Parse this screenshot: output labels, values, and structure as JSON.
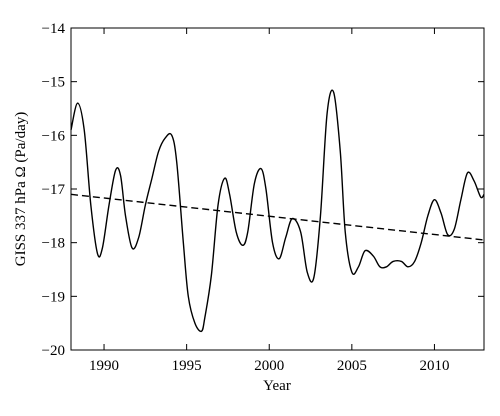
{
  "chart_data": {
    "type": "line",
    "xlabel": "Year",
    "ylabel": "GISS 337 hPa Ω (Pa/day)",
    "xlim": [
      1988.0,
      2013.0
    ],
    "ylim": [
      -20,
      -14
    ],
    "x_ticks": [
      1990,
      1995,
      2000,
      2005,
      2010
    ],
    "y_ticks": [
      -20,
      -19,
      -18,
      -17,
      -16,
      -15,
      -14
    ],
    "grid": false,
    "series": [
      {
        "style": "solid",
        "color": "#000000",
        "x": [
          1988.0,
          1988.4,
          1988.8,
          1989.2,
          1989.6,
          1989.9,
          1990.3,
          1990.7,
          1991.0,
          1991.3,
          1991.7,
          1992.1,
          1992.5,
          1992.9,
          1993.3,
          1993.7,
          1994.1,
          1994.4,
          1994.8,
          1995.1,
          1995.5,
          1995.9,
          1996.1,
          1996.5,
          1996.9,
          1997.3,
          1997.6,
          1998.0,
          1998.4,
          1998.7,
          1999.1,
          1999.5,
          1999.8,
          2000.2,
          2000.6,
          2001.0,
          2001.4,
          2001.9,
          2002.3,
          2002.7,
          2003.1,
          2003.5,
          2003.9,
          2004.3,
          2004.6,
          2005.0,
          2005.4,
          2005.8,
          2006.3,
          2006.7,
          2007.1,
          2007.5,
          2008.0,
          2008.4,
          2008.8,
          2009.2,
          2009.6,
          2010.0,
          2010.4,
          2010.8,
          2011.2,
          2011.6,
          2012.0,
          2012.4,
          2012.8,
          2013.0
        ],
        "y": [
          -15.9,
          -15.4,
          -15.9,
          -17.3,
          -18.2,
          -18.1,
          -17.3,
          -16.65,
          -16.75,
          -17.5,
          -18.1,
          -17.9,
          -17.3,
          -16.8,
          -16.3,
          -16.05,
          -16.0,
          -16.5,
          -18.0,
          -19.0,
          -19.5,
          -19.65,
          -19.4,
          -18.6,
          -17.3,
          -16.8,
          -17.1,
          -17.8,
          -18.05,
          -17.8,
          -16.9,
          -16.62,
          -17.0,
          -18.0,
          -18.3,
          -17.9,
          -17.55,
          -17.8,
          -18.55,
          -18.65,
          -17.5,
          -15.6,
          -15.2,
          -16.3,
          -17.8,
          -18.55,
          -18.45,
          -18.15,
          -18.25,
          -18.45,
          -18.45,
          -18.35,
          -18.35,
          -18.45,
          -18.35,
          -18.0,
          -17.5,
          -17.2,
          -17.45,
          -17.85,
          -17.75,
          -17.2,
          -16.7,
          -16.85,
          -17.15,
          -17.1
        ]
      },
      {
        "style": "dashed",
        "color": "#000000",
        "x": [
          1988.0,
          2013.0
        ],
        "y": [
          -17.1,
          -17.95
        ]
      }
    ]
  }
}
